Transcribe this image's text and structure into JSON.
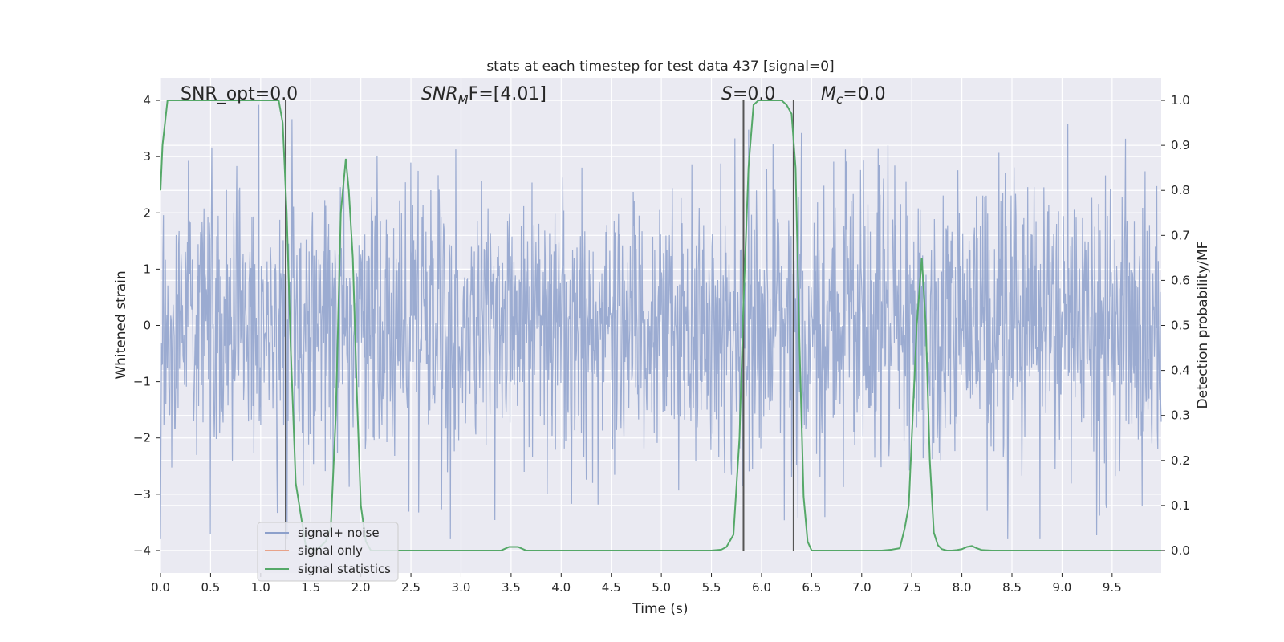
{
  "chart_data": {
    "type": "line",
    "title": "stats at each timestep for test data 437 [signal=0]",
    "xlabel": "Time (s)",
    "ylabel_left": "Whitened strain",
    "ylabel_right": "Detection probability/MF",
    "xlim": [
      0,
      9.99
    ],
    "ylim_left": [
      -4.4,
      4.4
    ],
    "ylim_right": [
      -0.05,
      1.05
    ],
    "xticks": [
      0,
      0.5,
      1,
      1.5,
      2,
      2.5,
      3,
      3.5,
      4,
      4.5,
      5,
      5.5,
      6,
      6.5,
      7,
      7.5,
      8,
      8.5,
      9,
      9.5
    ],
    "xtick_labels": [
      "0.0",
      "0.5",
      "1.0",
      "1.5",
      "2.0",
      "2.5",
      "3.0",
      "3.5",
      "4.0",
      "4.5",
      "5.0",
      "5.5",
      "6.0",
      "6.5",
      "7.0",
      "7.5",
      "8.0",
      "8.5",
      "9.0",
      "9.5"
    ],
    "yticks_left": [
      -4,
      -3,
      -2,
      -1,
      0,
      1,
      2,
      3,
      4
    ],
    "ytick_labels_left": [
      "−4",
      "−3",
      "−2",
      "−1",
      "0",
      "1",
      "2",
      "3",
      "4"
    ],
    "yticks_right": [
      0,
      0.1,
      0.2,
      0.3,
      0.4,
      0.5,
      0.6,
      0.7,
      0.8,
      0.9,
      1.0
    ],
    "ytick_labels_right": [
      "0.0",
      "0.1",
      "0.2",
      "0.3",
      "0.4",
      "0.5",
      "0.6",
      "0.7",
      "0.8",
      "0.9",
      "1.0"
    ],
    "grid": true,
    "legend": {
      "position": "lower-left",
      "entries": [
        {
          "label": "signal+ noise",
          "color": "#8da0cb"
        },
        {
          "label": "signal only",
          "color": "#e8a38a"
        },
        {
          "label": "signal statistics",
          "color": "#55a868"
        }
      ]
    },
    "annotations": {
      "snr_opt": "SNR_opt=0.0",
      "snr_mf_sym": "SNR",
      "snr_mf_sub": "M",
      "snr_mf_rest": "F=[4.01]",
      "s_sym": "S",
      "s_rest": "=0.0",
      "mc_sym": "M",
      "mc_sub": "c",
      "mc_rest": "=0.0"
    },
    "noise_series": {
      "name": "signal+ noise",
      "color": "#8da0cb",
      "n_samples": 2048,
      "amplitude_std": 1.0,
      "range": [
        -3.8,
        4.0
      ]
    },
    "signal_only_series": {
      "name": "signal only",
      "color": "#e8a38a",
      "values": []
    },
    "statistics_series": {
      "name": "signal statistics",
      "color": "#55a868",
      "x": [
        0.0,
        0.02,
        0.07,
        0.12,
        0.2,
        0.4,
        0.6,
        0.8,
        1.0,
        1.1,
        1.18,
        1.22,
        1.26,
        1.3,
        1.35,
        1.45,
        1.55,
        1.6,
        1.65,
        1.7,
        1.75,
        1.8,
        1.85,
        1.88,
        1.92,
        1.96,
        2.0,
        2.05,
        2.1,
        2.3,
        2.6,
        3.0,
        3.3,
        3.4,
        3.48,
        3.57,
        3.65,
        3.75,
        4.0,
        4.5,
        5.0,
        5.5,
        5.6,
        5.65,
        5.72,
        5.78,
        5.82,
        5.87,
        5.92,
        5.97,
        6.05,
        6.2,
        6.25,
        6.3,
        6.34,
        6.38,
        6.42,
        6.46,
        6.5,
        6.6,
        6.8,
        7.0,
        7.2,
        7.3,
        7.38,
        7.43,
        7.47,
        7.5,
        7.55,
        7.6,
        7.64,
        7.68,
        7.72,
        7.76,
        7.8,
        7.85,
        7.9,
        7.95,
        8.0,
        8.05,
        8.1,
        8.15,
        8.2,
        8.3,
        8.5,
        9.0,
        9.5,
        9.99
      ],
      "values": [
        0.8,
        0.9,
        1.0,
        1.0,
        1.0,
        1.0,
        1.0,
        1.0,
        1.0,
        1.0,
        1.0,
        0.95,
        0.75,
        0.45,
        0.15,
        0.01,
        0.0,
        0.01,
        0.02,
        0.05,
        0.3,
        0.75,
        0.87,
        0.8,
        0.65,
        0.35,
        0.1,
        0.02,
        0.0,
        0.0,
        0.0,
        0.0,
        0.0,
        0.0,
        0.008,
        0.008,
        0.0,
        0.0,
        0.0,
        0.0,
        0.0,
        0.0,
        0.002,
        0.008,
        0.035,
        0.25,
        0.55,
        0.85,
        0.99,
        1.0,
        1.0,
        1.0,
        0.99,
        0.97,
        0.85,
        0.45,
        0.12,
        0.02,
        0.0,
        0.0,
        0.0,
        0.0,
        0.0,
        0.002,
        0.005,
        0.05,
        0.1,
        0.25,
        0.5,
        0.65,
        0.5,
        0.2,
        0.04,
        0.012,
        0.003,
        0.0,
        0.0,
        0.001,
        0.003,
        0.008,
        0.01,
        0.005,
        0.001,
        0.0,
        0.0,
        0.0,
        0.0,
        0.0
      ]
    },
    "vertical_lines": [
      {
        "x": 1.25,
        "y_top": 1.0
      },
      {
        "x": 5.82,
        "y_top": 1.0
      },
      {
        "x": 6.32,
        "y_top": 1.0
      }
    ],
    "background": "#eaeaf2",
    "grid_color": "#ffffff",
    "vline_color": "#555555"
  }
}
